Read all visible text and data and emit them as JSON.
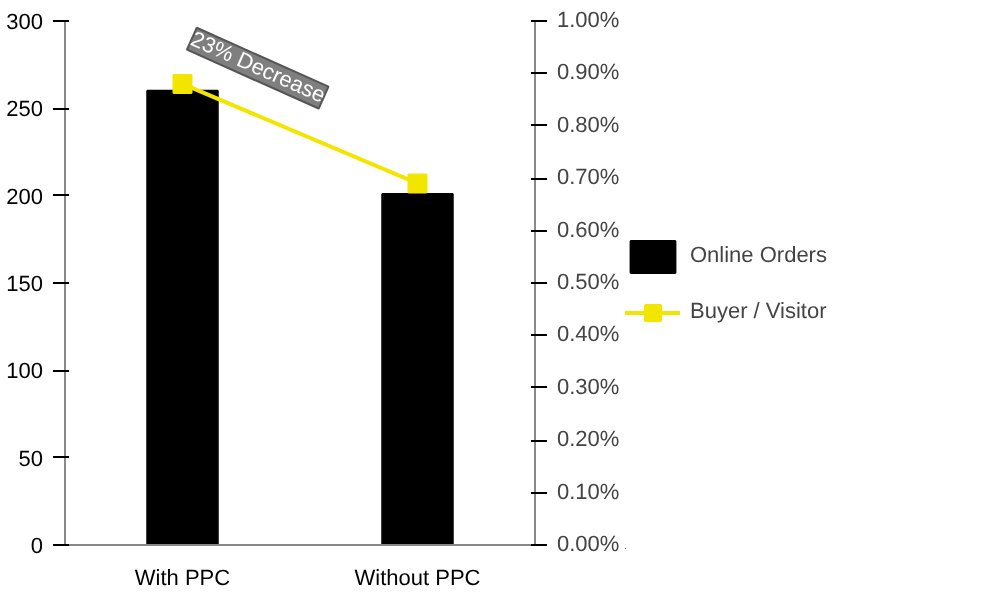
{
  "chart_data": {
    "type": "bar",
    "categories": [
      "With PPC",
      "Without PPC"
    ],
    "series": [
      {
        "name": "Online Orders",
        "color": "#000000",
        "values": [
          260,
          201
        ]
      },
      {
        "name": "Buyer / Visitor",
        "color": "#f2e600",
        "type": "line",
        "axis": "y2",
        "values": [
          0.0088,
          0.0069
        ]
      }
    ],
    "ylim": [
      0,
      300
    ],
    "yticks": [
      0,
      50,
      100,
      150,
      200,
      250,
      300
    ],
    "y2lim": [
      0,
      0.01
    ],
    "y2ticks": [
      {
        "value": 0,
        "label": "0.00%"
      },
      {
        "value": 0.001,
        "label": "0.10%"
      },
      {
        "value": 0.002,
        "label": "0.20%"
      },
      {
        "value": 0.003,
        "label": "0.30%"
      },
      {
        "value": 0.004,
        "label": "0.40%"
      },
      {
        "value": 0.005,
        "label": "0.50%"
      },
      {
        "value": 0.006,
        "label": "0.60%"
      },
      {
        "value": 0.007,
        "label": "0.70%"
      },
      {
        "value": 0.008,
        "label": "0.80%"
      },
      {
        "value": 0.009,
        "label": "0.90%"
      },
      {
        "value": 0.01,
        "label": "1.00%"
      }
    ],
    "annotations": [
      "23% Decrease"
    ],
    "marker": "square",
    "legend": "right",
    "grid": false
  }
}
